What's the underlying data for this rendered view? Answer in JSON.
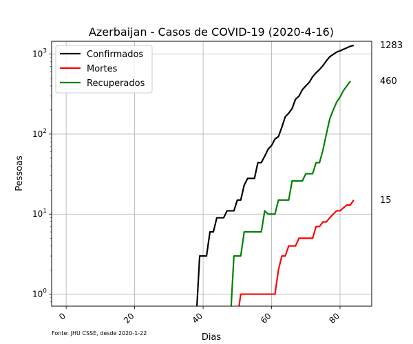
{
  "chart_data": {
    "type": "line",
    "title": "Azerbaijan - Casos de COVID-19 (2020-4-16)",
    "xlabel": "Dias",
    "ylabel": "Pessoas",
    "yscale": "log",
    "xlim": [
      -4.25,
      89.25
    ],
    "ylim_log10": [
      -0.15,
      3.16
    ],
    "x_ticks": [
      0,
      20,
      40,
      60,
      80
    ],
    "y_ticks": [
      {
        "exp": 0,
        "label": "10",
        "sup": "0"
      },
      {
        "exp": 1,
        "label": "10",
        "sup": "1"
      },
      {
        "exp": 2,
        "label": "10",
        "sup": "2"
      },
      {
        "exp": 3,
        "label": "10",
        "sup": "3"
      }
    ],
    "grid": true,
    "legend": "top-left",
    "source_note": "Fonte: JHU CSSE, desde 2020-1-22",
    "series": [
      {
        "name": "Confirmados",
        "color": "#000000",
        "end_label": "1283",
        "points": [
          [
            38,
            0
          ],
          [
            39,
            3
          ],
          [
            40,
            3
          ],
          [
            41,
            3
          ],
          [
            42,
            6
          ],
          [
            43,
            6
          ],
          [
            44,
            9
          ],
          [
            45,
            9
          ],
          [
            46,
            9
          ],
          [
            47,
            11
          ],
          [
            48,
            11
          ],
          [
            49,
            11
          ],
          [
            50,
            15
          ],
          [
            51,
            15
          ],
          [
            52,
            23
          ],
          [
            53,
            28
          ],
          [
            54,
            28
          ],
          [
            55,
            28
          ],
          [
            56,
            44
          ],
          [
            57,
            44
          ],
          [
            58,
            53
          ],
          [
            59,
            65
          ],
          [
            60,
            72
          ],
          [
            61,
            87
          ],
          [
            62,
            93
          ],
          [
            63,
            122
          ],
          [
            64,
            165
          ],
          [
            65,
            182
          ],
          [
            66,
            209
          ],
          [
            67,
            273
          ],
          [
            68,
            298
          ],
          [
            69,
            359
          ],
          [
            70,
            400
          ],
          [
            71,
            443
          ],
          [
            72,
            521
          ],
          [
            73,
            584
          ],
          [
            74,
            641
          ],
          [
            75,
            717
          ],
          [
            76,
            822
          ],
          [
            77,
            926
          ],
          [
            78,
            991
          ],
          [
            79,
            1058
          ],
          [
            80,
            1098
          ],
          [
            81,
            1148
          ],
          [
            82,
            1197
          ],
          [
            83,
            1253
          ],
          [
            84,
            1283
          ]
        ]
      },
      {
        "name": "Mortes",
        "color": "#ff0000",
        "end_label": "15",
        "points": [
          [
            50,
            0
          ],
          [
            51,
            1
          ],
          [
            52,
            1
          ],
          [
            53,
            1
          ],
          [
            54,
            1
          ],
          [
            55,
            1
          ],
          [
            56,
            1
          ],
          [
            57,
            1
          ],
          [
            58,
            1
          ],
          [
            59,
            1
          ],
          [
            60,
            1
          ],
          [
            61,
            1
          ],
          [
            62,
            2
          ],
          [
            63,
            3
          ],
          [
            64,
            3
          ],
          [
            65,
            4
          ],
          [
            66,
            4
          ],
          [
            67,
            4
          ],
          [
            68,
            5
          ],
          [
            69,
            5
          ],
          [
            70,
            5
          ],
          [
            71,
            5
          ],
          [
            72,
            5
          ],
          [
            73,
            7
          ],
          [
            74,
            7
          ],
          [
            75,
            8
          ],
          [
            76,
            8
          ],
          [
            77,
            9
          ],
          [
            78,
            10
          ],
          [
            79,
            11
          ],
          [
            80,
            11
          ],
          [
            81,
            12
          ],
          [
            82,
            13
          ],
          [
            83,
            13
          ],
          [
            84,
            15
          ]
        ]
      },
      {
        "name": "Recuperados",
        "color": "#008000",
        "end_label": "460",
        "points": [
          [
            48,
            0
          ],
          [
            49,
            3
          ],
          [
            50,
            3
          ],
          [
            51,
            3
          ],
          [
            52,
            6
          ],
          [
            53,
            6
          ],
          [
            54,
            6
          ],
          [
            55,
            6
          ],
          [
            56,
            6
          ],
          [
            57,
            6
          ],
          [
            58,
            11
          ],
          [
            59,
            10
          ],
          [
            60,
            10
          ],
          [
            61,
            10
          ],
          [
            62,
            15
          ],
          [
            63,
            15
          ],
          [
            64,
            15
          ],
          [
            65,
            15
          ],
          [
            66,
            26
          ],
          [
            67,
            26
          ],
          [
            68,
            26
          ],
          [
            69,
            26
          ],
          [
            70,
            32
          ],
          [
            71,
            32
          ],
          [
            72,
            32
          ],
          [
            73,
            44
          ],
          [
            74,
            44
          ],
          [
            75,
            63
          ],
          [
            76,
            100
          ],
          [
            77,
            155
          ],
          [
            78,
            200
          ],
          [
            79,
            250
          ],
          [
            80,
            290
          ],
          [
            81,
            350
          ],
          [
            82,
            400
          ],
          [
            83,
            460
          ]
        ]
      }
    ]
  }
}
